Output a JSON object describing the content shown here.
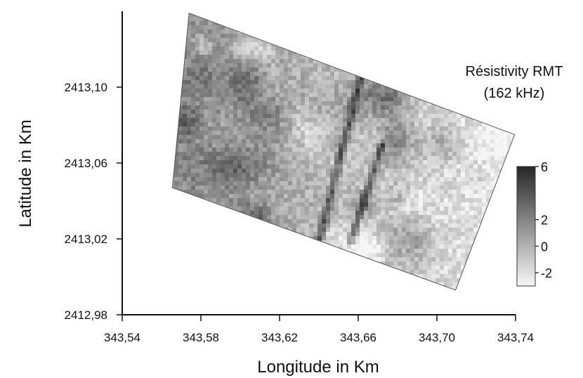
{
  "chart_data": {
    "type": "heatmap",
    "xlabel": "Longitude in Km",
    "ylabel": "Latitude in Km",
    "xlim": [
      343.54,
      343.74
    ],
    "ylim": [
      2412.98,
      2413.14
    ],
    "x_ticks": [
      "343,54",
      "343,58",
      "343,62",
      "343,66",
      "343,70",
      "343,74"
    ],
    "y_ticks": [
      "2412,98",
      "2413,02",
      "2413,06",
      "2413,10"
    ],
    "legend_title_line1": "Résistivity RMT",
    "legend_title_line2": "(162 kHz)",
    "colorbar_ticks": [
      "6",
      "2",
      "0",
      "-2"
    ],
    "colorbar_range": [
      -3,
      6
    ],
    "survey_area_corners": [
      {
        "x": 343.574,
        "y": 2413.139
      },
      {
        "x": 343.7395,
        "y": 2413.075
      },
      {
        "x": 343.7095,
        "y": 2412.993
      },
      {
        "x": 343.5655,
        "y": 2413.047
      }
    ],
    "anomalies": [
      {
        "kind": "conductive-linear",
        "from": {
          "x": 343.639,
          "y": 2413.02
        },
        "to": {
          "x": 343.662,
          "y": 2413.113
        }
      },
      {
        "kind": "conductive-linear",
        "from": {
          "x": 343.655,
          "y": 2413.02
        },
        "to": {
          "x": 343.671,
          "y": 2413.07
        }
      }
    ],
    "grid": false
  }
}
